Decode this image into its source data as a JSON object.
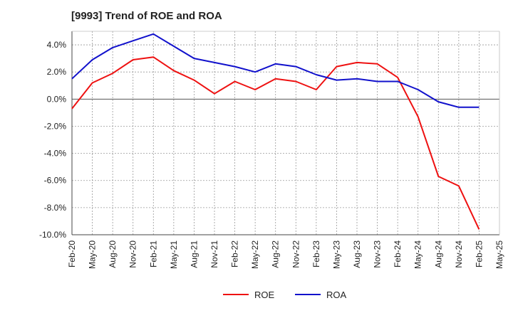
{
  "chart_data": {
    "type": "line",
    "title": "[9993]  Trend of ROE and ROA",
    "xlabel": "",
    "ylabel": "",
    "categories": [
      "Feb-20",
      "May-20",
      "Aug-20",
      "Nov-20",
      "Feb-21",
      "May-21",
      "Aug-21",
      "Nov-21",
      "Feb-22",
      "May-22",
      "Aug-22",
      "Nov-22",
      "Feb-23",
      "May-23",
      "Aug-23",
      "Nov-23",
      "Feb-24",
      "May-24",
      "Aug-24",
      "Nov-24",
      "Feb-25",
      "May-25"
    ],
    "ylim": [
      -10,
      5
    ],
    "yticks": [
      4,
      2,
      0,
      -2,
      -4,
      -6,
      -8,
      -10
    ],
    "ytick_labels": [
      "4.0%",
      "2.0%",
      "0.0%",
      "-2.0%",
      "-4.0%",
      "-6.0%",
      "-8.0%",
      "-10.0%"
    ],
    "grid": true,
    "legend_position": "bottom-center",
    "series": [
      {
        "name": "ROE",
        "color": "#ee1111",
        "values": [
          -0.7,
          1.2,
          1.9,
          2.9,
          3.1,
          2.1,
          1.4,
          0.4,
          1.3,
          0.7,
          1.5,
          1.3,
          0.7,
          2.4,
          2.7,
          2.6,
          1.6,
          -1.3,
          -5.7,
          -6.4,
          -9.6,
          null
        ]
      },
      {
        "name": "ROA",
        "color": "#1111cc",
        "values": [
          1.5,
          2.9,
          3.8,
          4.3,
          4.8,
          3.9,
          3.0,
          2.7,
          2.4,
          2.0,
          2.6,
          2.4,
          1.8,
          1.4,
          1.5,
          1.3,
          1.3,
          0.7,
          -0.2,
          -0.6,
          -0.6,
          null
        ]
      }
    ]
  }
}
